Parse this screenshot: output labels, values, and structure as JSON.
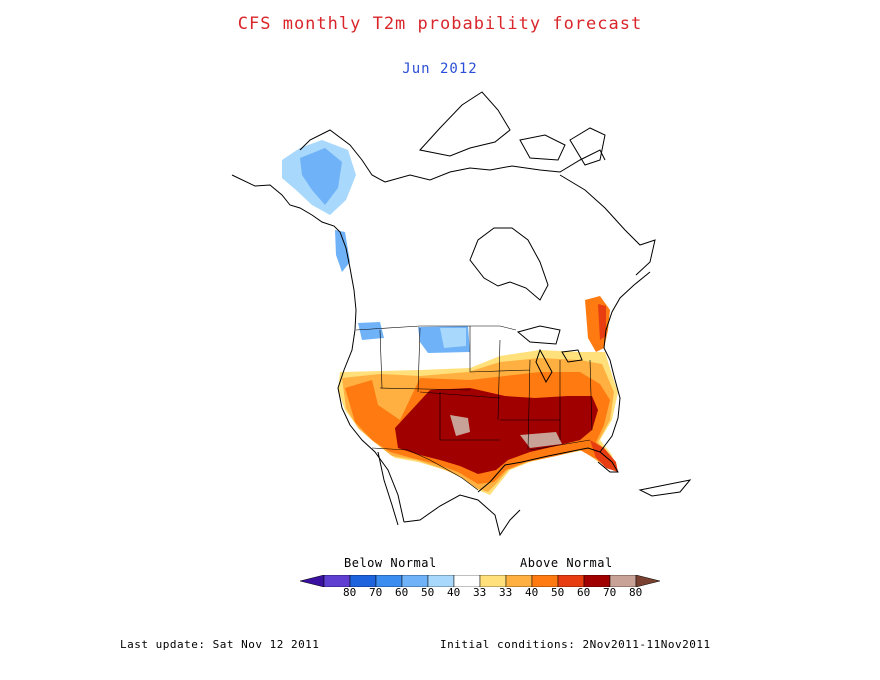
{
  "header": {
    "title": "CFS monthly T2m probability forecast",
    "subtitle": "Jun 2012"
  },
  "legend": {
    "below_label": "Below Normal",
    "above_label": "Above Normal",
    "ticks": [
      "80",
      "70",
      "60",
      "50",
      "40",
      "33",
      "33",
      "40",
      "50",
      "60",
      "70",
      "80"
    ],
    "colors": [
      "#3a10a0",
      "#5e3fd2",
      "#1e63de",
      "#3c8df0",
      "#6fb2f8",
      "#a8d8fb",
      "#ffffff",
      "#ffe07a",
      "#ffb040",
      "#ff7a10",
      "#e83d10",
      "#a00000",
      "#c8a296",
      "#7a4030"
    ]
  },
  "footer": {
    "last_update": "Last update: Sat Nov 12 2011",
    "initial_conditions": "Initial conditions: 2Nov2011-11Nov2011"
  }
}
